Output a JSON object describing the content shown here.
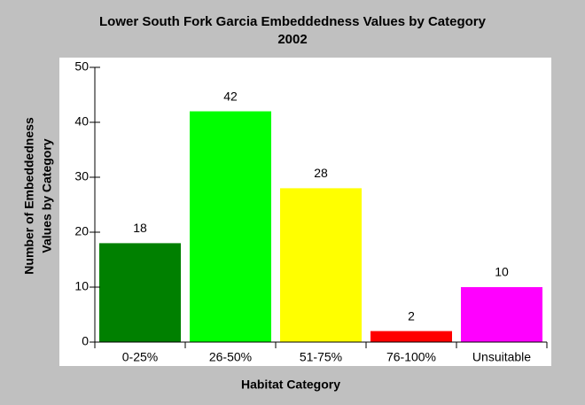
{
  "chart_data": {
    "type": "bar",
    "title": [
      "Lower South Fork Garcia Embeddedness Values by Category",
      "2002"
    ],
    "x_label": "Habitat Category",
    "y_label": [
      "Number of Embeddedness",
      "Values by Category"
    ],
    "categories": [
      "0-25%",
      "26-50%",
      "51-75%",
      "76-100%",
      "Unsuitable"
    ],
    "values": [
      18,
      42,
      28,
      2,
      10
    ],
    "colors": [
      "#008000",
      "#00ff00",
      "#ffff00",
      "#ff0000",
      "#ff00ff"
    ],
    "ylim": [
      0,
      50
    ],
    "yticks": [
      0,
      10,
      20,
      30,
      40,
      50
    ]
  }
}
